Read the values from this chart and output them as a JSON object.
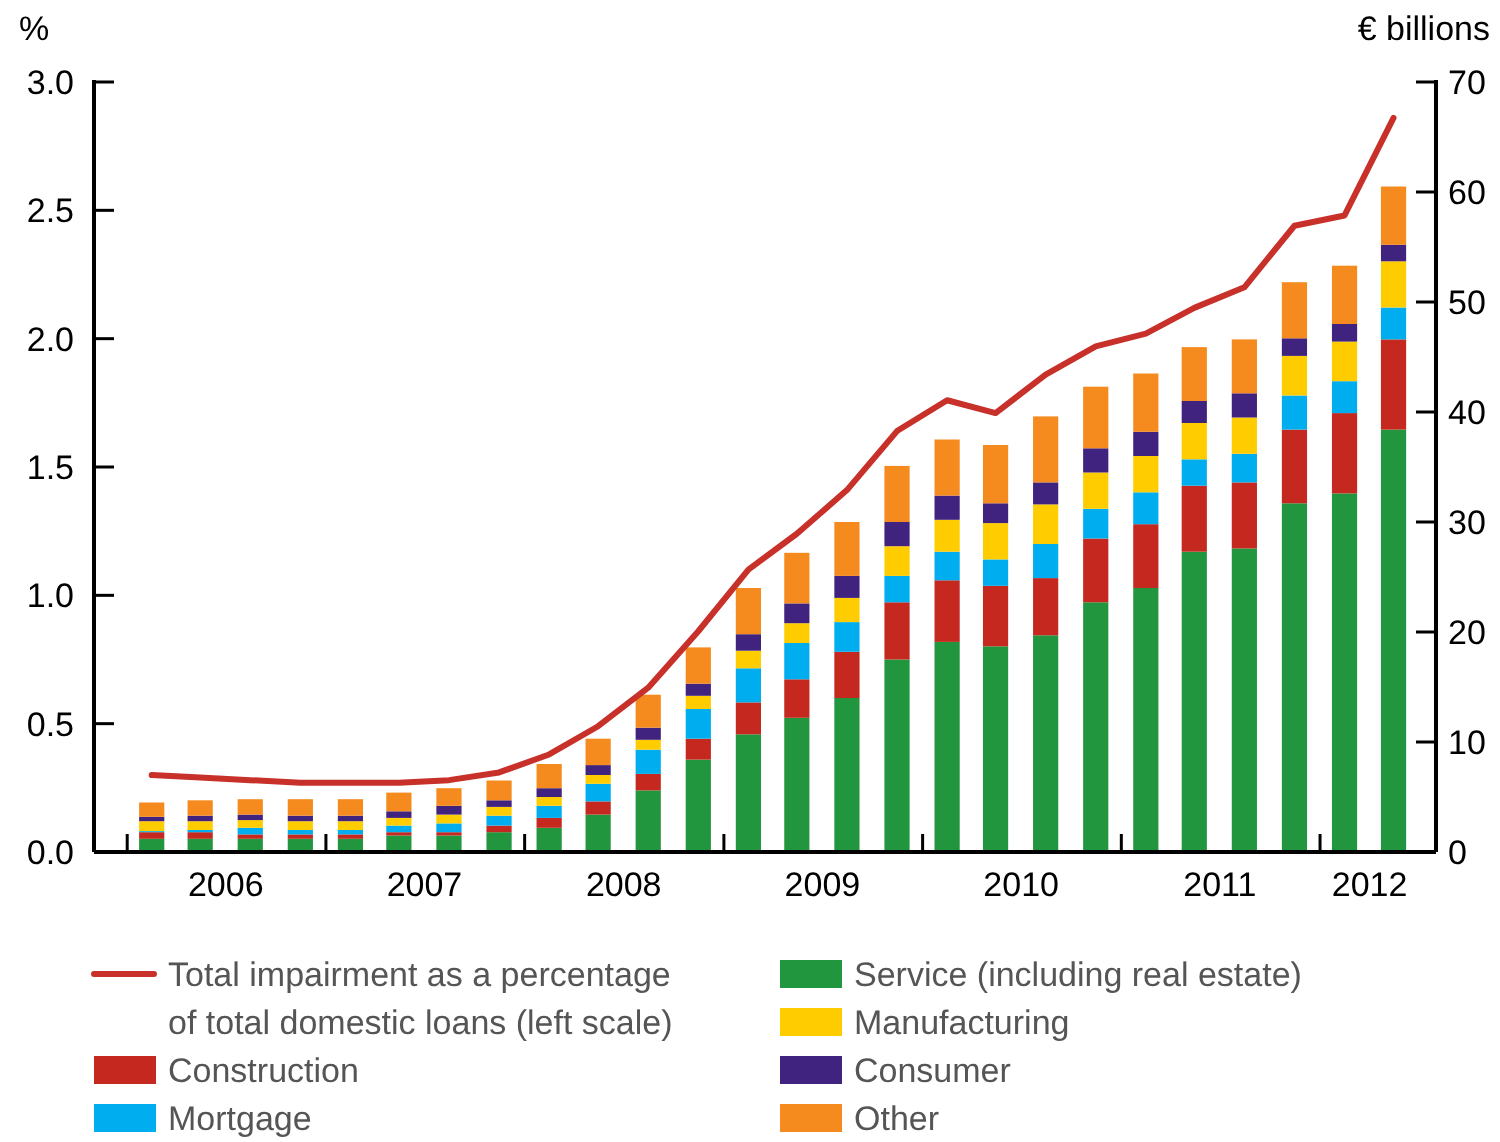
{
  "chart_data": {
    "type": "bar",
    "stacked": true,
    "ylabel": "%",
    "y2label": "€ billions",
    "x": [
      "2006-02-15",
      "2006-05-15",
      "2006-08-15",
      "2006-11-15",
      "2007-02-15",
      "2007-05-15",
      "2007-08-15",
      "2007-11-15",
      "2008-02-15",
      "2008-05-15",
      "2008-08-15",
      "2008-11-15",
      "2009-02-15",
      "2009-05-15",
      "2009-08-15",
      "2009-11-15",
      "2010-02-15",
      "2010-05-15",
      "2010-08-15",
      "2010-11-15",
      "2011-02-15",
      "2011-05-15",
      "2011-08-15",
      "2011-11-15",
      "2012-02-15",
      "2012-05-15"
    ],
    "xlim": [
      "2005-11-01",
      "2012-08-01"
    ],
    "xticks": [
      {
        "value": "2006-01-01",
        "label": null
      },
      {
        "value": "2006-07-01",
        "label": "2006"
      },
      {
        "value": "2007-01-01",
        "label": null
      },
      {
        "value": "2007-07-01",
        "label": "2007"
      },
      {
        "value": "2008-01-01",
        "label": null
      },
      {
        "value": "2008-07-01",
        "label": "2008"
      },
      {
        "value": "2009-01-01",
        "label": null
      },
      {
        "value": "2009-07-01",
        "label": "2009"
      },
      {
        "value": "2010-01-01",
        "label": null
      },
      {
        "value": "2010-07-01",
        "label": "2010"
      },
      {
        "value": "2011-01-01",
        "label": null
      },
      {
        "value": "2011-07-01",
        "label": "2011"
      },
      {
        "value": "2012-01-01",
        "label": null
      },
      {
        "value": "2012-04-01",
        "label": "2012"
      }
    ],
    "ylim": [
      0,
      3
    ],
    "yticks": [
      {
        "value": 0,
        "label": "0.0"
      },
      0.5,
      {
        "value": 1,
        "label": "1.0"
      },
      1.5,
      {
        "value": 2,
        "label": "2.0"
      },
      2.5,
      {
        "value": 3,
        "label": "3.0"
      }
    ],
    "y2lim": [
      0,
      70
    ],
    "y2ticks": [
      0,
      10,
      20,
      30,
      40,
      50,
      60,
      70
    ],
    "grid": false,
    "legend": "bottom",
    "series": [
      {
        "name": "Service (including real estate)",
        "color": "#22963f",
        "axis": "y2",
        "values": [
          1.2,
          1.2,
          1.2,
          1.2,
          1.2,
          1.5,
          1.5,
          1.8,
          2.2,
          3.4,
          5.6,
          8.4,
          10.7,
          12.2,
          14.0,
          17.5,
          19.1,
          18.7,
          19.7,
          22.7,
          24.0,
          27.3,
          27.6,
          31.7,
          32.6,
          38.4
        ]
      },
      {
        "name": "Construction",
        "color": "#c4281f",
        "axis": "y2",
        "values": [
          0.6,
          0.6,
          0.4,
          0.4,
          0.4,
          0.3,
          0.3,
          0.6,
          0.9,
          1.2,
          1.5,
          1.9,
          2.9,
          3.5,
          4.2,
          5.2,
          5.6,
          5.5,
          5.2,
          5.8,
          5.8,
          6.0,
          6.0,
          6.7,
          7.3,
          8.2
        ]
      },
      {
        "name": "Mortgage",
        "color": "#00aeef",
        "axis": "y2",
        "values": [
          0.1,
          0.2,
          0.6,
          0.4,
          0.4,
          0.6,
          0.8,
          0.9,
          1.1,
          1.6,
          2.2,
          2.7,
          3.1,
          3.3,
          2.7,
          2.4,
          2.6,
          2.4,
          3.1,
          2.7,
          2.9,
          2.4,
          2.6,
          3.1,
          2.9,
          2.9
        ]
      },
      {
        "name": "Manufacturing",
        "color": "#ffcc00",
        "axis": "y2",
        "values": [
          0.9,
          0.8,
          0.7,
          0.8,
          0.8,
          0.7,
          0.8,
          0.8,
          0.8,
          0.8,
          0.9,
          1.2,
          1.6,
          1.8,
          2.2,
          2.7,
          2.9,
          3.3,
          3.6,
          3.3,
          3.3,
          3.3,
          3.3,
          3.6,
          3.6,
          4.2
        ]
      },
      {
        "name": "Consumer",
        "color": "#40237e",
        "axis": "y2",
        "values": [
          0.4,
          0.5,
          0.5,
          0.5,
          0.5,
          0.6,
          0.8,
          0.6,
          0.8,
          0.9,
          1.1,
          1.1,
          1.5,
          1.8,
          2.0,
          2.2,
          2.2,
          1.8,
          2.0,
          2.2,
          2.2,
          2.0,
          2.2,
          1.6,
          1.6,
          1.5
        ]
      },
      {
        "name": "Other",
        "color": "#f58a1f",
        "axis": "y2",
        "values": [
          1.3,
          1.4,
          1.4,
          1.5,
          1.5,
          1.7,
          1.6,
          1.8,
          2.2,
          2.4,
          3.0,
          3.3,
          4.2,
          4.6,
          4.9,
          5.1,
          5.1,
          5.3,
          6.0,
          5.6,
          5.3,
          4.9,
          4.9,
          5.1,
          5.3,
          5.3
        ]
      },
      {
        "name": "Total impairment as a percentage of total domestic loans (left scale)",
        "type": "line",
        "color": "#c8302a",
        "axis": "y",
        "values": [
          0.3,
          0.29,
          0.28,
          0.27,
          0.27,
          0.27,
          0.28,
          0.31,
          0.38,
          0.49,
          0.64,
          0.86,
          1.1,
          1.24,
          1.41,
          1.64,
          1.76,
          1.71,
          1.86,
          1.97,
          2.02,
          2.12,
          2.2,
          2.44,
          2.48,
          2.86
        ]
      }
    ]
  }
}
